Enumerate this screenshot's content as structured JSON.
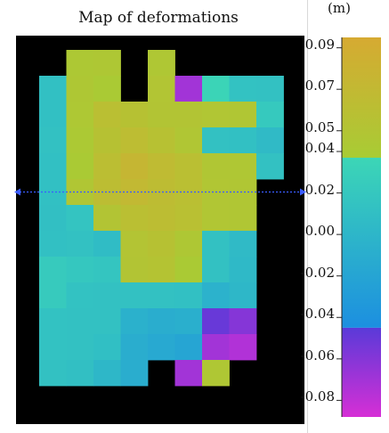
{
  "chart_data": {
    "type": "heatmap",
    "title": "Map of deformations",
    "colorbar": {
      "unit": "(m)",
      "tick_labels": [
        "0.09",
        "0.07",
        "0.05",
        "0.04",
        "0.02",
        "0.00",
        "-0.02",
        "-0.04",
        "-0.06",
        "-0.08"
      ],
      "ticks": [
        0.09,
        0.07,
        0.05,
        0.04,
        0.02,
        0.0,
        -0.02,
        -0.04,
        -0.06,
        -0.08
      ],
      "range": [
        -0.088,
        0.095
      ],
      "segments": [
        {
          "from": 0.037,
          "to": 0.095,
          "color_bottom": "#a8cc34",
          "color_top": "#d6aa32"
        },
        {
          "from": -0.045,
          "to": 0.037,
          "color_bottom": "#1c8fe0",
          "color_top": "#3cd6b6"
        },
        {
          "from": -0.088,
          "to": -0.045,
          "color_bottom": "#d62fd6",
          "color_top": "#5a3ad8"
        }
      ]
    },
    "grid": {
      "columns": 9,
      "rows": 14,
      "values": [
        [
          null,
          0.043,
          0.045,
          null,
          0.046,
          null,
          null,
          null,
          null
        ],
        [
          0.012,
          0.045,
          0.04,
          null,
          0.049,
          -0.07,
          0.035,
          0.014,
          0.013
        ],
        [
          0.012,
          0.044,
          0.06,
          0.055,
          0.05,
          0.05,
          0.048,
          0.047,
          0.022
        ],
        [
          0.013,
          0.042,
          0.055,
          0.063,
          0.056,
          0.047,
          0.013,
          0.012,
          0.005
        ],
        [
          0.012,
          0.04,
          0.061,
          0.074,
          0.066,
          0.06,
          0.047,
          0.046,
          0.013
        ],
        [
          0.012,
          0.047,
          0.062,
          0.07,
          0.064,
          0.06,
          0.048,
          0.047,
          null
        ],
        [
          0.011,
          0.016,
          0.05,
          0.06,
          0.062,
          0.058,
          0.048,
          0.047,
          null
        ],
        [
          0.012,
          0.013,
          0.007,
          0.051,
          0.055,
          0.045,
          0.013,
          0.005,
          null
        ],
        [
          0.023,
          0.02,
          0.017,
          0.05,
          0.052,
          0.04,
          0.013,
          0.003,
          null
        ],
        [
          0.023,
          0.014,
          0.013,
          0.013,
          0.013,
          0.012,
          -0.005,
          0.001,
          null
        ],
        [
          0.014,
          0.013,
          0.013,
          -0.006,
          -0.01,
          -0.008,
          -0.05,
          -0.06,
          null
        ],
        [
          0.014,
          0.013,
          0.01,
          -0.01,
          -0.015,
          -0.02,
          -0.07,
          -0.075,
          null
        ],
        [
          0.013,
          0.011,
          0.001,
          -0.01,
          null,
          -0.07,
          0.046,
          null,
          null
        ],
        [
          null,
          null,
          null,
          null,
          null,
          null,
          null,
          null,
          null
        ]
      ]
    },
    "marker_line": {
      "row_boundary": 5.5,
      "style": "dotted",
      "color": "#3a5cff"
    },
    "background_color": "#000000"
  }
}
